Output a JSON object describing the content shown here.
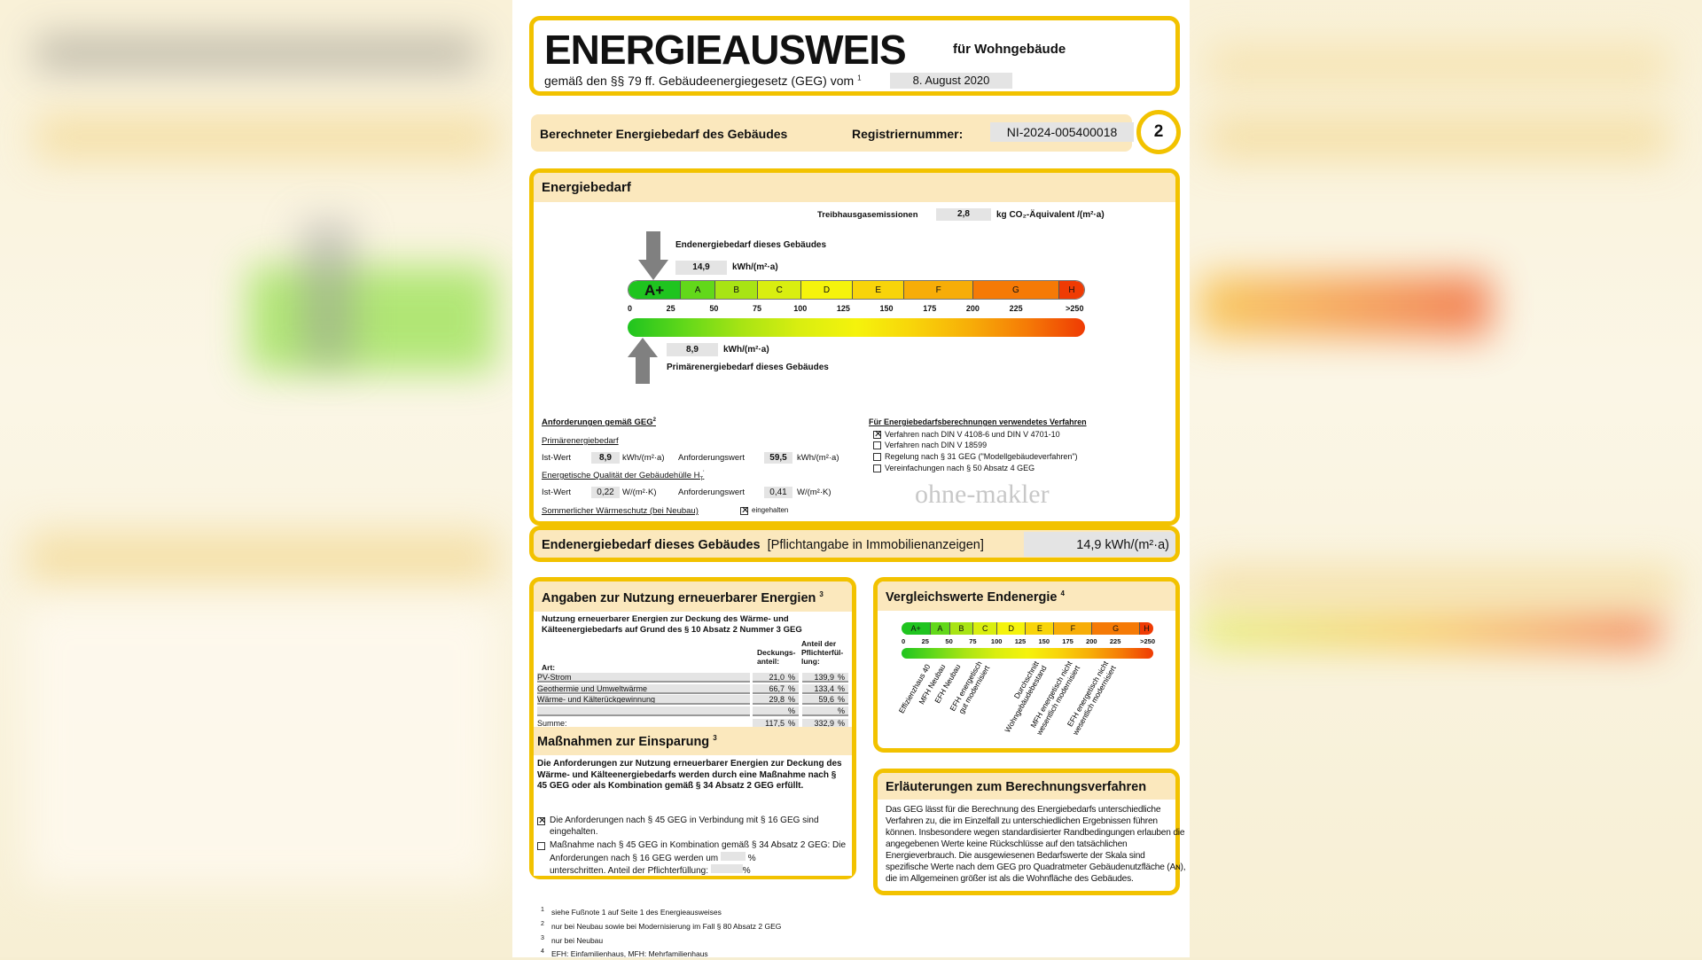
{
  "header": {
    "title": "ENERGIEAUSWEIS",
    "subtitle": "für Wohngebäude",
    "law": "gemäß den §§ 79 ff. Gebäudeenergiegesetz (GEG) vom",
    "law_sup": "1",
    "date": "8. August 2020"
  },
  "bar": {
    "label": "Berechneter Energiebedarf des Gebäudes",
    "reg_label": "Registriernummer:",
    "reg_value": "NI-2024-005400018",
    "page": "2"
  },
  "energy": {
    "title": "Energiebedarf",
    "ghg_label": "Treibhausgasemissionen",
    "ghg_value": "2,8",
    "ghg_unit": "kg CO₂-Äquivalent /(m²·a)",
    "end_label": "Endenergiebedarf dieses Gebäudes",
    "end_value": "14,9",
    "end_unit": "kWh/(m²·a)",
    "end_num": 14.9,
    "prim_label": "Primärenergiebedarf dieses Gebäudes",
    "prim_value": "8,9",
    "prim_unit": "kWh/(m²·a)",
    "prim_num": 8.9,
    "scale": {
      "max": 265,
      "classes": [
        {
          "label": "A+",
          "from": 0,
          "to": 30
        },
        {
          "label": "A",
          "from": 30,
          "to": 50
        },
        {
          "label": "B",
          "from": 50,
          "to": 75
        },
        {
          "label": "C",
          "from": 75,
          "to": 100
        },
        {
          "label": "D",
          "from": 100,
          "to": 130
        },
        {
          "label": "E",
          "from": 130,
          "to": 160
        },
        {
          "label": "F",
          "from": 160,
          "to": 200
        },
        {
          "label": "G",
          "from": 200,
          "to": 250
        },
        {
          "label": "H",
          "from": 250,
          "to": 265
        }
      ],
      "ticks": [
        {
          "v": 0,
          "t": "0"
        },
        {
          "v": 25,
          "t": "25"
        },
        {
          "v": 50,
          "t": "50"
        },
        {
          "v": 75,
          "t": "75"
        },
        {
          "v": 100,
          "t": "100"
        },
        {
          "v": 125,
          "t": "125"
        },
        {
          "v": 150,
          "t": "150"
        },
        {
          "v": 175,
          "t": "175"
        },
        {
          "v": 200,
          "t": "200"
        },
        {
          "v": 225,
          "t": "225"
        },
        {
          "v": 259,
          "t": ">250"
        }
      ],
      "colors": [
        "#1fc41f",
        "#62d81a",
        "#a8e414",
        "#d9ee10",
        "#f5f30c",
        "#f8d40a",
        "#f7ad08",
        "#f57a06",
        "#ef3b04"
      ]
    },
    "req": {
      "title": "Anforderungen gemäß GEG",
      "title_sup": "2",
      "prim": "Primärenergiebedarf",
      "ist": "Ist-Wert",
      "anf": "Anforderungswert",
      "prim_ist": "8,9",
      "prim_unit": "kWh/(m²·a)",
      "prim_anf": "59,5",
      "ht": "Energetische Qualität der Gebäudehülle H",
      "ht_sub": "T",
      "ht_sup": "'",
      "ht_ist": "0,22",
      "ht_unit": "W/(m²·K)",
      "ht_anf": "0,41",
      "summer": "Sommerlicher Wärmeschutz (bei Neubau)",
      "summer_val": "eingehalten",
      "summer_checked": true
    },
    "method": {
      "title": "Für Energiebedarfsberechnungen verwendetes Verfahren",
      "items": [
        {
          "label": "Verfahren nach DIN V 4108-6 und DIN V 4701-10",
          "checked": true
        },
        {
          "label": "Verfahren nach DIN V 18599",
          "checked": false
        },
        {
          "label": "Regelung nach § 31 GEG (\"Modellgebäudeverfahren\")",
          "checked": false
        },
        {
          "label": "Vereinfachungen nach § 50 Absatz 4 GEG",
          "checked": false
        }
      ]
    },
    "watermark": "ohne-makler"
  },
  "final": {
    "label": "Endenergiebedarf dieses Gebäudes",
    "note": "[Pflichtangabe in Immobilienanzeigen]",
    "value": "14,9 kWh/(m²·a)"
  },
  "renew": {
    "title": "Angaben zur Nutzung erneuerbarer Energien",
    "sup": "3",
    "subtitle": "Nutzung erneuerbarer Energien zur Deckung des Wärme- und Kälteenergiebedarfs auf Grund des § 10 Absatz 2 Nummer 3 GEG",
    "col_art": "Art:",
    "col_dec": "Deckungs-anteil:",
    "col_ant": "Anteil der Pflichterfül-lung:",
    "pct": "%",
    "rows": [
      {
        "art": "PV-Strom",
        "dec": "21,0",
        "ant": "139,9"
      },
      {
        "art": "Geothermie und Umweltwärme",
        "dec": "66,7",
        "ant": "133,4"
      },
      {
        "art": "Wärme- und Kälterückgewinnung",
        "dec": "29,8",
        "ant": "59,6"
      },
      {
        "art": "",
        "dec": "",
        "ant": ""
      }
    ],
    "sum": {
      "art": "Summe:",
      "dec": "117,5",
      "ant": "332,9"
    }
  },
  "measures": {
    "title": "Maßnahmen zur Einsparung",
    "sup": "3",
    "text": "Die Anforderungen zur Nutzung erneuerbarer Energien zur Deckung des Wärme- und Kälteenergiebedarfs werden durch eine Maßnahme nach § 45 GEG oder als Kombination gemäß § 34 Absatz 2 GEG erfüllt.",
    "opt1": "Die Anforderungen nach § 45 GEG in Verbindung mit § 16 GEG sind eingehalten.",
    "opt1_checked": true,
    "opt2a": "Maßnahme nach § 45 GEG in Kombination gemäß § 34 Absatz 2 GEG: Die Anforderungen nach § 16 GEG werden um",
    "opt2b": "unterschritten. Anteil der Pflichterfüllung:",
    "opt2_checked": false,
    "pct": "%"
  },
  "compare": {
    "title": "Vergleichswerte Endenergie",
    "sup": "4",
    "refs": [
      {
        "lines": [
          "Effizienzhaus 40"
        ],
        "v": 15
      },
      {
        "lines": [
          "MFH Neubau"
        ],
        "v": 25
      },
      {
        "lines": [
          "EFH Neubau"
        ],
        "v": 40
      },
      {
        "lines": [
          "EFH energetisch",
          "gut modernisiert"
        ],
        "v": 75
      },
      {
        "lines": [
          "Durchschnitt",
          "Wohngebäudebestand"
        ],
        "v": 135
      },
      {
        "lines": [
          "MFH energetisch nicht",
          "wesentlich modernisiert"
        ],
        "v": 170
      },
      {
        "lines": [
          "EFH energetisch nicht",
          "wesentlich modernisiert"
        ],
        "v": 208
      }
    ]
  },
  "explain": {
    "title": "Erläuterungen zum Berechnungsverfahren",
    "text": "Das GEG lässt für die Berechnung des Energiebedarfs unterschiedliche Verfahren zu, die im Einzelfall zu unterschiedlichen Ergebnissen führen können. Insbesondere wegen standardisierter Randbedingungen erlauben die angegebenen Werte keine Rückschlüsse auf den tatsächlichen Energieverbrauch. Die ausgewiesenen Bedarfswerte der Skala sind spezifische Werte nach dem GEG pro Quadratmeter Gebäudenutzfläche (Aɴ), die im Allgemeinen größer ist als die Wohnfläche des Gebäudes."
  },
  "footnotes": [
    {
      "n": "1",
      "t": "siehe Fußnote 1 auf Seite 1 des Energieausweises"
    },
    {
      "n": "2",
      "t": "nur bei Neubau sowie bei Modernisierung im Fall § 80 Absatz 2 GEG"
    },
    {
      "n": "3",
      "t": "nur bei Neubau"
    },
    {
      "n": "4",
      "t": "EFH: Einfamilienhaus, MFH: Mehrfamilienhaus"
    }
  ]
}
